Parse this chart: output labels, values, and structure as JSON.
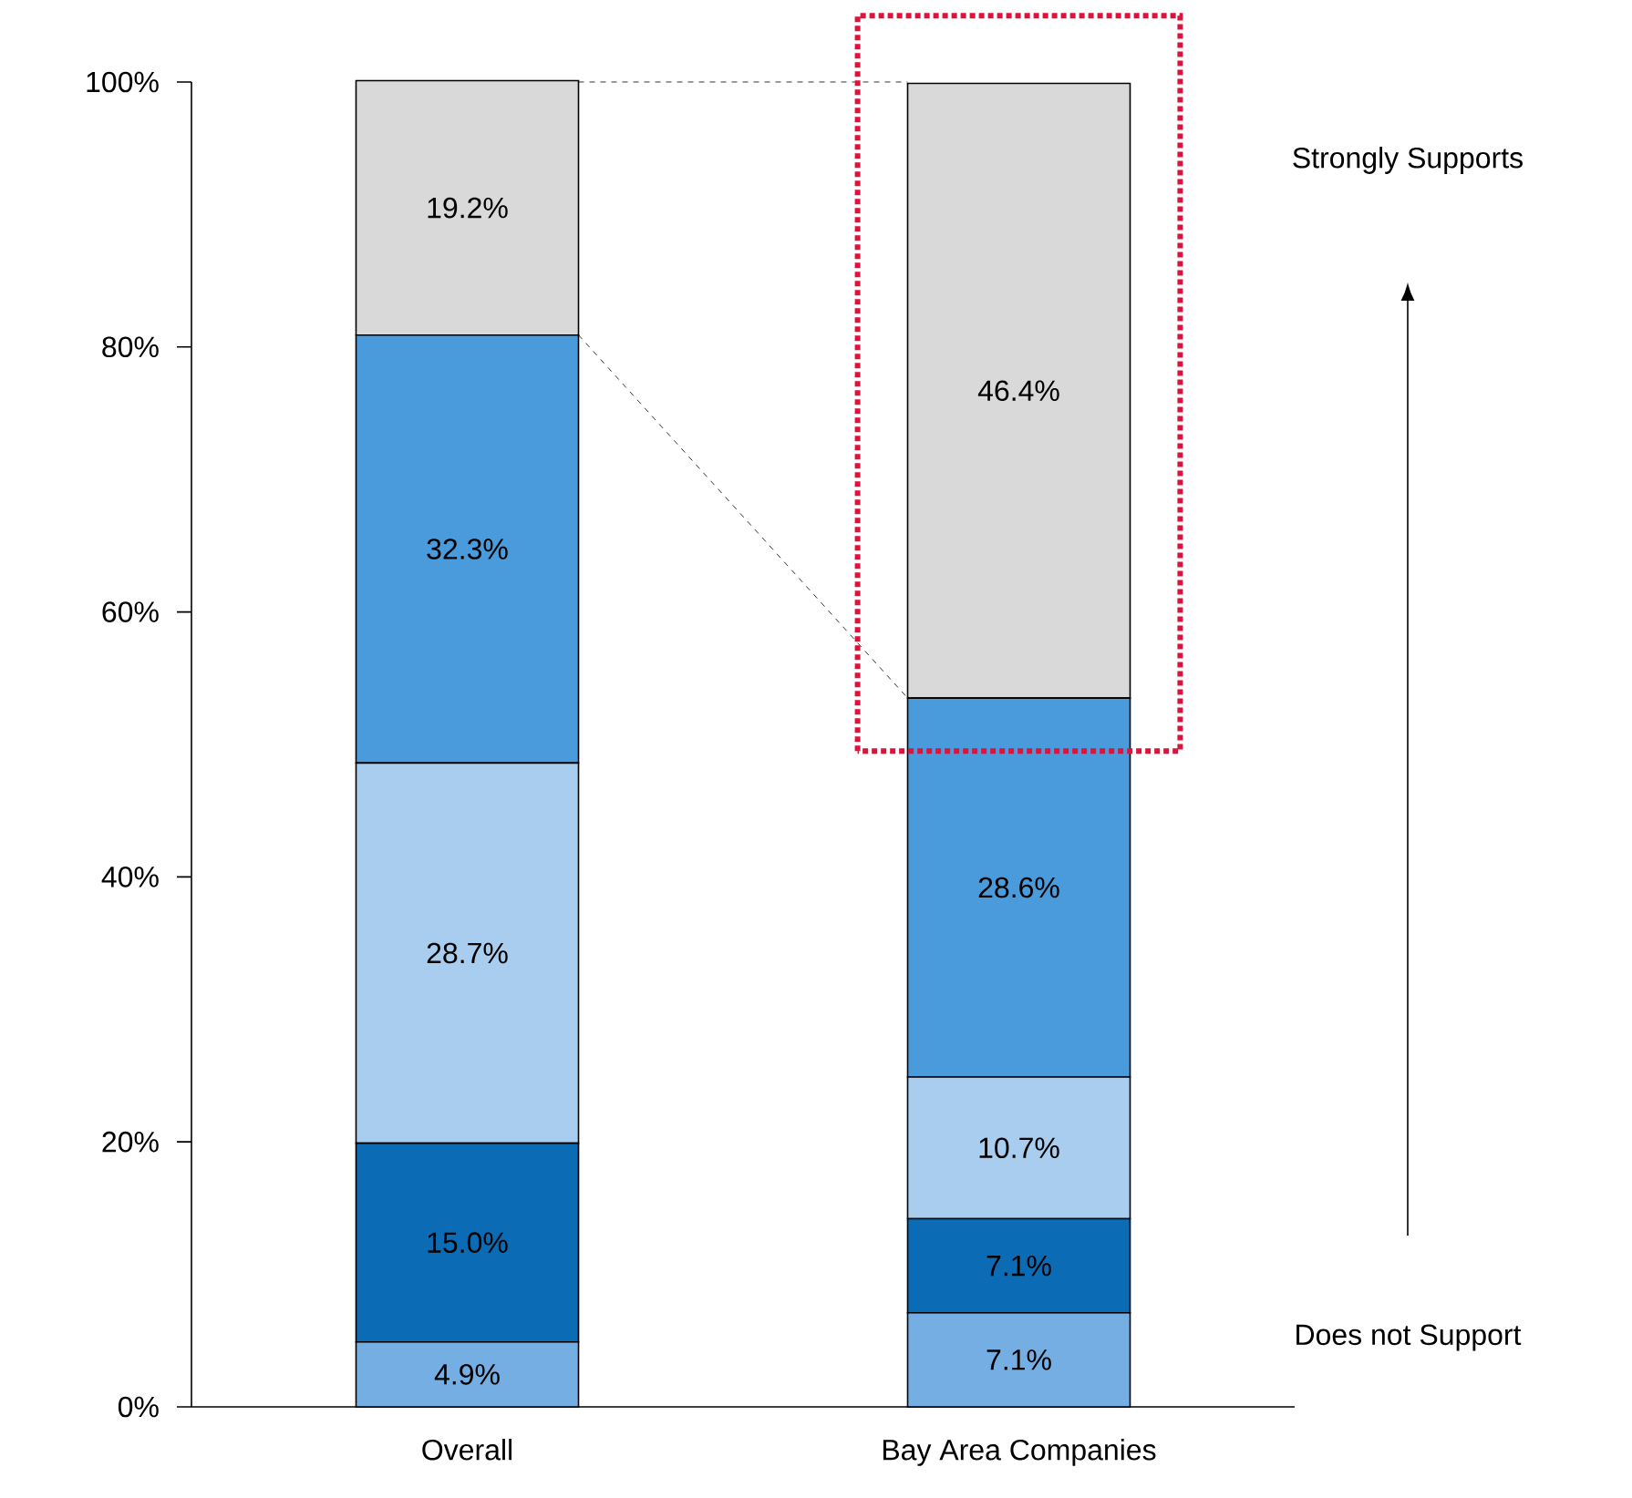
{
  "chart_data": {
    "type": "bar",
    "stacked": true,
    "categories": [
      "Overall",
      "Bay Area Companies"
    ],
    "series": [
      {
        "color": "#74aee3",
        "values": [
          4.9,
          7.1
        ],
        "value_labels": [
          "4.9%",
          "7.1%"
        ]
      },
      {
        "color": "#0b6cb5",
        "values": [
          15.0,
          7.1
        ],
        "value_labels": [
          "15.0%",
          "7.1%"
        ]
      },
      {
        "color": "#a8cdee",
        "values": [
          28.7,
          10.7
        ],
        "value_labels": [
          "28.7%",
          "10.7%"
        ]
      },
      {
        "color": "#4a9bdc",
        "values": [
          32.3,
          28.6
        ],
        "value_labels": [
          "32.3%",
          "28.6%"
        ]
      },
      {
        "color": "#d9d9d9",
        "values": [
          19.2,
          46.4
        ],
        "value_labels": [
          "19.2%",
          "46.4%"
        ]
      }
    ],
    "ylim": [
      0,
      100
    ],
    "yticks": [
      {
        "value": 0,
        "label": "0%"
      },
      {
        "value": 20,
        "label": "20%"
      },
      {
        "value": 40,
        "label": "40%"
      },
      {
        "value": 60,
        "label": "60%"
      },
      {
        "value": 80,
        "label": "80%"
      },
      {
        "value": 100,
        "label": "100%"
      }
    ],
    "grid": false,
    "annotations": [
      "Strongly Supports",
      "Does not Support"
    ]
  }
}
